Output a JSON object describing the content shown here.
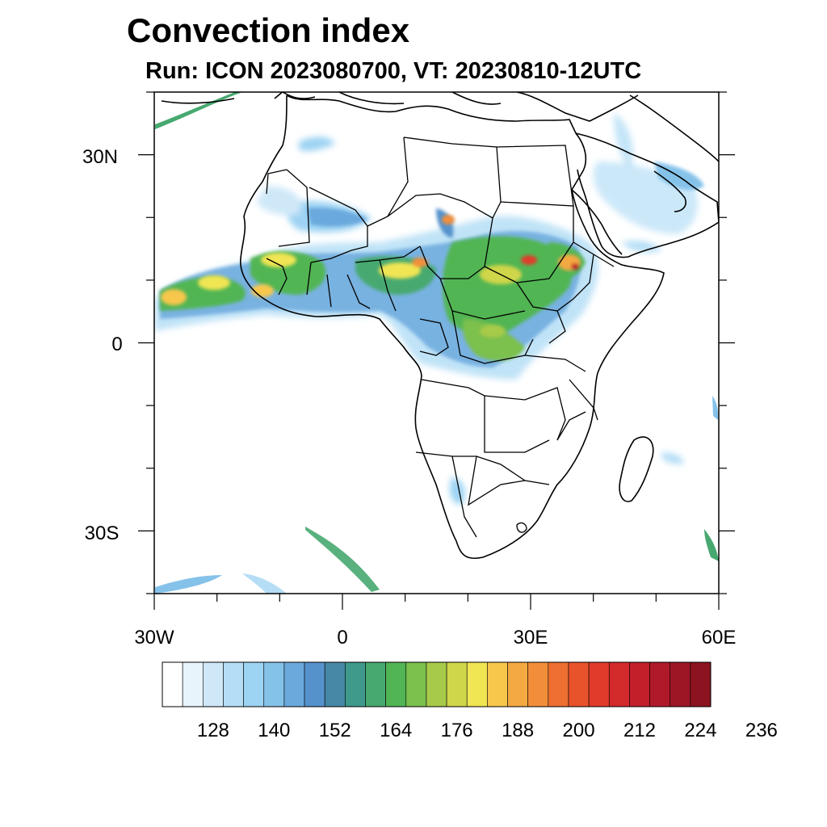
{
  "title": "Convection index",
  "subtitle": "Run: ICON 2023080700,  VT: 20230810-12UTC",
  "axes": {
    "lat_labels": [
      "30N",
      "0",
      "30S"
    ],
    "lon_labels": [
      "30W",
      "0",
      "30E",
      "60E"
    ]
  },
  "colorbar": {
    "colors": [
      "#ffffff",
      "#e8f4fc",
      "#cfe8f8",
      "#b5def6",
      "#9dd3f3",
      "#85c2ea",
      "#6ba9dd",
      "#5592cc",
      "#4688a6",
      "#3f9a8c",
      "#47a970",
      "#51b553",
      "#7cc04d",
      "#a8ca4a",
      "#d0d64a",
      "#f0e552",
      "#f7c74c",
      "#f5a943",
      "#f28e3a",
      "#ee6f31",
      "#e9532b",
      "#e13c2b",
      "#d32a2c",
      "#c21f2b",
      "#b0192a",
      "#9d1626",
      "#8b1420"
    ],
    "tick_labels": [
      "128",
      "140",
      "152",
      "164",
      "176",
      "188",
      "200",
      "212",
      "224",
      "236"
    ]
  },
  "chart_data": {
    "type": "heatmap",
    "title": "Convection index",
    "subtitle": "Run: ICON 2023080700,  VT: 20230810-12UTC",
    "lon_range": [
      -30,
      60
    ],
    "lat_range": [
      -40,
      40
    ],
    "colorbar_levels": [
      128,
      140,
      152,
      164,
      176,
      188,
      200,
      212,
      224,
      236
    ],
    "regions": [
      {
        "lon": [
          -30,
          -20
        ],
        "lat": [
          5,
          10
        ],
        "level": 188
      },
      {
        "lon": [
          -20,
          -5
        ],
        "lat": [
          5,
          15
        ],
        "level": 176
      },
      {
        "lon": [
          -5,
          15
        ],
        "lat": [
          6,
          14
        ],
        "level": 176
      },
      {
        "lon": [
          15,
          38
        ],
        "lat": [
          0,
          15
        ],
        "level": 170
      },
      {
        "lon": [
          35,
          40
        ],
        "lat": [
          10,
          15
        ],
        "level": 200
      },
      {
        "lon": [
          45,
          58
        ],
        "lat": [
          15,
          25
        ],
        "level": 140
      }
    ]
  }
}
